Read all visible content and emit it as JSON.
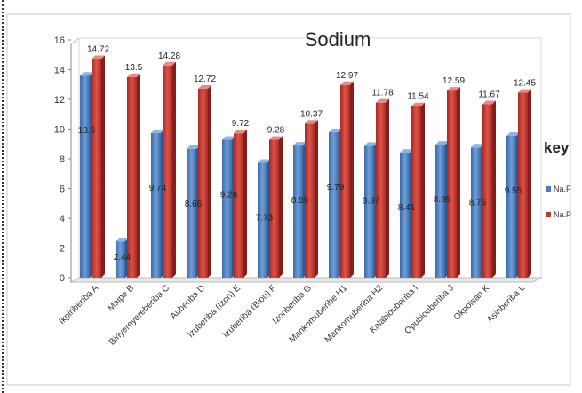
{
  "chart_data": {
    "type": "bar",
    "title": "Sodium",
    "xlabel": "",
    "ylabel": "",
    "ylim": [
      0,
      16
    ],
    "yticks": [
      "0",
      "2",
      "4",
      "6",
      "8",
      "10",
      "12",
      "14",
      "16"
    ],
    "grid": false,
    "legend_position": "right",
    "legend_title": "key",
    "categories": [
      "Ikpiriberiba A",
      "Maipe  B",
      "Biriyereyereberiba C",
      "Auberiba D",
      "Izuberiba (Izon) E",
      "Izuberiba (Biou) F",
      "Izonberiba G",
      "Mankomuberibe H1",
      "Mankomuberiba H2",
      "Kalabiouberiba I",
      "Opubiouberiba J",
      "Okpoisan K",
      "Asinberiba L"
    ],
    "series": [
      {
        "name": "Na.F",
        "color": "#4a7ebf",
        "values": [
          13.6,
          2.44,
          9.74,
          8.66,
          9.28,
          7.73,
          8.89,
          9.79,
          8.87,
          8.41,
          8.95,
          8.76,
          9.55
        ],
        "labels": [
          "13.6",
          "2.44",
          "9.74",
          "8.66",
          "9.28",
          "7.73",
          "8.89",
          "9.79",
          "8.87",
          "8.41",
          "8.95",
          "8.76",
          "9.55"
        ]
      },
      {
        "name": "Na.P",
        "color": "#c0392b",
        "values": [
          14.72,
          13.5,
          14.28,
          12.72,
          9.72,
          9.28,
          10.37,
          12.97,
          11.78,
          11.54,
          12.59,
          11.67,
          12.45
        ],
        "labels": [
          "14.72",
          "13.5",
          "14.28",
          "12.72",
          "9.72",
          "9.28",
          "10.37",
          "12.97",
          "11.78",
          "11.54",
          "12.59",
          "11.67",
          "12.45"
        ]
      }
    ]
  }
}
